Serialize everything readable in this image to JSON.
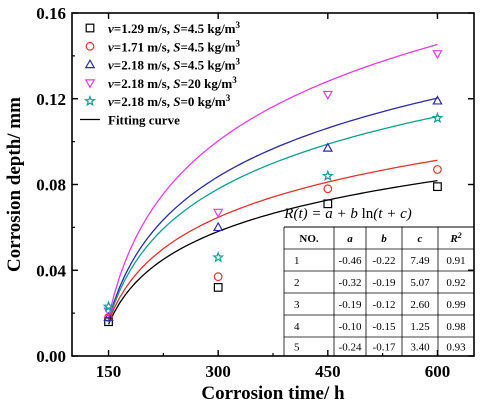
{
  "chart_data": {
    "type": "scatter",
    "xlabel": "Corrosion time/ h",
    "ylabel": "Corrosion depth/  mm",
    "xlim": [
      100,
      650
    ],
    "ylim": [
      0,
      0.16
    ],
    "xticks": [
      150,
      300,
      450,
      600
    ],
    "xtick_labels": [
      "150",
      "300",
      "450",
      "600"
    ],
    "yticks": [
      0,
      0.04,
      0.08,
      0.12,
      0.16
    ],
    "ytick_labels": [
      "0.00",
      "0.04",
      "0.08",
      "0.12",
      "0.16"
    ],
    "grid": false,
    "legend_position": "top-left",
    "series": [
      {
        "name": "v=1.29 m/s, S=4.5 kg/m3",
        "legend_parts": [
          [
            "v",
            true
          ],
          [
            "=1.29 m/s, ",
            false
          ],
          [
            "S",
            true
          ],
          [
            "=4.5 kg/m",
            false
          ]
        ],
        "marker": "square",
        "color": "#000000",
        "x": [
          150,
          300,
          450,
          600
        ],
        "y": [
          0.016,
          0.032,
          0.071,
          0.079
        ],
        "fit": [
          -0.46,
          -0.22,
          7.49
        ]
      },
      {
        "name": "v=1.71 m/s, S=4.5 kg/m3",
        "legend_parts": [
          [
            "v",
            true
          ],
          [
            "=1.71 m/s, ",
            false
          ],
          [
            "S",
            true
          ],
          [
            "=4.5 kg/m",
            false
          ]
        ],
        "marker": "circle",
        "color": "#e8302c",
        "x": [
          150,
          300,
          450,
          600
        ],
        "y": [
          0.018,
          0.037,
          0.078,
          0.087
        ],
        "fit": [
          -0.32,
          -0.19,
          5.07
        ]
      },
      {
        "name": "v=2.18 m/s, S=4.5 kg/m3",
        "legend_parts": [
          [
            "v",
            true
          ],
          [
            "=2.18 m/s, ",
            false
          ],
          [
            "S",
            true
          ],
          [
            "=4.5 kg/m",
            false
          ]
        ],
        "marker": "triangle-up",
        "color": "#2a2aa8",
        "x": [
          150,
          300,
          450,
          600
        ],
        "y": [
          0.018,
          0.06,
          0.097,
          0.119
        ],
        "fit": [
          -0.19,
          -0.12,
          2.6
        ]
      },
      {
        "name": "v=2.18 m/s, S=20 kg/m3",
        "legend_parts": [
          [
            "v",
            true
          ],
          [
            "=2.18 m/s, ",
            false
          ],
          [
            "S",
            true
          ],
          [
            "=20 kg/m",
            false
          ]
        ],
        "marker": "triangle-down",
        "color": "#e63ce6",
        "x": [
          150,
          300,
          450,
          600
        ],
        "y": [
          0.021,
          0.067,
          0.122,
          0.141
        ],
        "fit": [
          -0.1,
          -0.15,
          1.25
        ]
      },
      {
        "name": "v=2.18 m/s, S=0 kg/m3",
        "legend_parts": [
          [
            "v",
            true
          ],
          [
            "=2.18 m/s, ",
            false
          ],
          [
            "S",
            true
          ],
          [
            "=0 kg/m",
            false
          ]
        ],
        "marker": "star",
        "color": "#0f9f90",
        "x": [
          150,
          300,
          450,
          600
        ],
        "y": [
          0.023,
          0.046,
          0.084,
          0.111
        ],
        "fit": [
          -0.24,
          -0.17,
          3.4
        ]
      }
    ],
    "fit_legend_label": "Fitting curve",
    "fit_curve_endpoints": {
      "start_y": [
        0.0148,
        0.0161,
        0.0168,
        0.0182,
        0.0163
      ],
      "end_y": [
        0.0818,
        0.0913,
        0.1203,
        0.1453,
        0.1117
      ]
    },
    "formula": {
      "lhs": "R(t) = a + b",
      "fn": "ln",
      "arg": "(t + c)"
    },
    "table": {
      "columns": [
        "NO.",
        "a",
        "b",
        "c",
        "R"
      ],
      "r_superscript": "2",
      "rows": [
        [
          "1",
          "-0.46",
          "-0.22",
          "7.49",
          "0.91"
        ],
        [
          "2",
          "-0.32",
          "-0.19",
          "5.07",
          "0.92"
        ],
        [
          "3",
          "-0.19",
          "-0.12",
          "2.60",
          "0.99"
        ],
        [
          "4",
          "-0.10",
          "-0.15",
          "1.25",
          "0.98"
        ],
        [
          "5",
          "-0.24",
          "-0.17",
          "3.40",
          "0.93"
        ]
      ]
    }
  }
}
